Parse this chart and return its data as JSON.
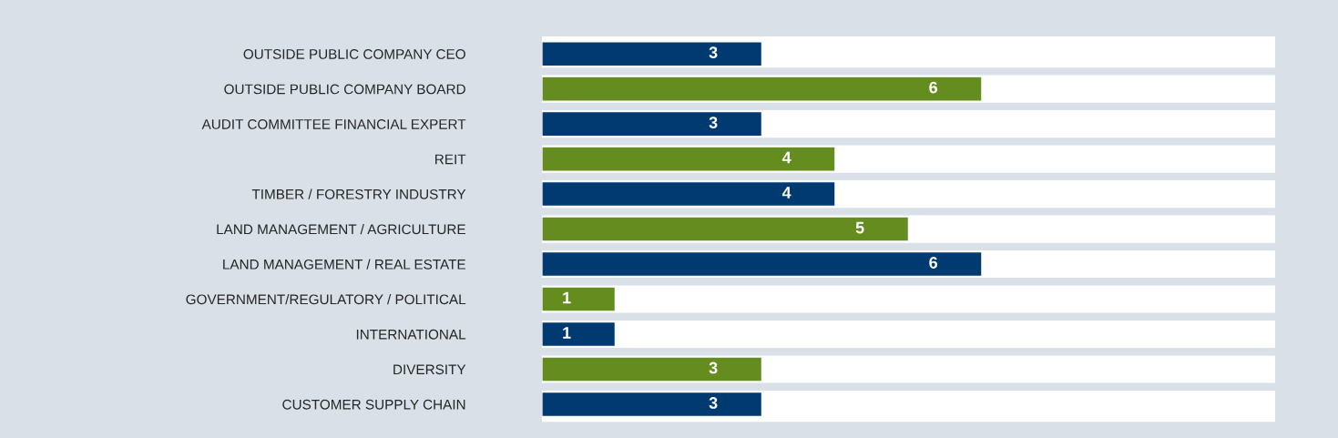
{
  "chart_data": {
    "type": "bar",
    "orientation": "horizontal",
    "categories": [
      "OUTSIDE PUBLIC COMPANY CEO",
      "OUTSIDE PUBLIC COMPANY BOARD",
      "AUDIT COMMITTEE FINANCIAL EXPERT",
      "REIT",
      "TIMBER / FORESTRY INDUSTRY",
      "LAND MANAGEMENT / AGRICULTURE",
      "LAND MANAGEMENT / REAL ESTATE",
      "GOVERNMENT/REGULATORY / POLITICAL",
      "INTERNATIONAL",
      "DIVERSITY",
      "CUSTOMER SUPPLY CHAIN"
    ],
    "values": [
      3,
      6,
      3,
      4,
      4,
      5,
      6,
      1,
      1,
      3,
      3
    ],
    "colors": [
      "#003a70",
      "#648c1e",
      "#003a70",
      "#648c1e",
      "#003a70",
      "#648c1e",
      "#003a70",
      "#648c1e",
      "#003a70",
      "#648c1e",
      "#003a70"
    ],
    "xlim": [
      0,
      10
    ],
    "data_labels": true,
    "grid": false,
    "tick_labels": "y"
  }
}
